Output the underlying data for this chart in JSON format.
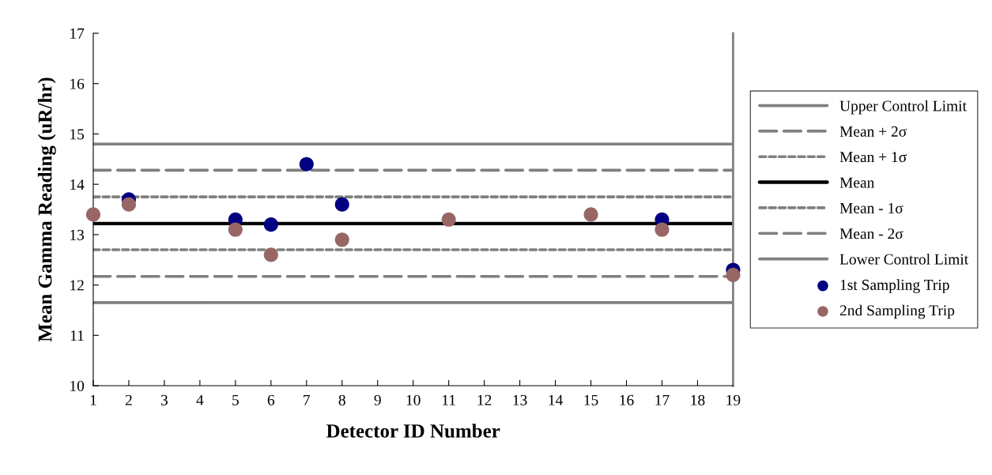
{
  "chart_data": {
    "type": "line",
    "xlabel": "Detector ID Number",
    "ylabel": "Mean Gamma Reading (uR/hr)",
    "xlim": [
      1,
      19
    ],
    "xticks": [
      1,
      2,
      3,
      4,
      5,
      6,
      7,
      8,
      9,
      10,
      11,
      12,
      13,
      14,
      15,
      16,
      17,
      18,
      19
    ],
    "ylim": [
      10,
      17
    ],
    "yticks": [
      10,
      11,
      12,
      13,
      14,
      15,
      16,
      17
    ],
    "grid": false,
    "legend": "right",
    "series": [
      {
        "name": "Upper Control Limit",
        "line_style": "solid",
        "color": "#808080",
        "x": [
          1,
          19
        ],
        "values": [
          14.8,
          14.8
        ]
      },
      {
        "name": "Mean + 2σ",
        "line_style": "dashed",
        "color": "#808080",
        "x": [
          1,
          19
        ],
        "values": [
          14.28,
          14.28
        ]
      },
      {
        "name": "Mean + 1σ",
        "line_style": "dotted",
        "color": "#808080",
        "x": [
          1,
          19
        ],
        "values": [
          13.75,
          13.75
        ]
      },
      {
        "name": "Mean",
        "line_style": "solid",
        "color": "#000000",
        "x": [
          1,
          19
        ],
        "values": [
          13.22,
          13.22
        ]
      },
      {
        "name": "Mean - 1σ",
        "line_style": "dotted",
        "color": "#808080",
        "x": [
          1,
          19
        ],
        "values": [
          12.7,
          12.7
        ]
      },
      {
        "name": "Mean - 2σ",
        "line_style": "dashed",
        "color": "#808080",
        "x": [
          1,
          19
        ],
        "values": [
          12.17,
          12.17
        ]
      },
      {
        "name": "Lower Control Limit",
        "line_style": "solid",
        "color": "#808080",
        "x": [
          1,
          19
        ],
        "values": [
          11.65,
          11.65
        ]
      },
      {
        "name": "1st Sampling Trip",
        "type": "scatter",
        "marker": "circle",
        "color": "#000080",
        "x": [
          2,
          5,
          6,
          7,
          8,
          17,
          19
        ],
        "values": [
          13.7,
          13.3,
          13.2,
          14.4,
          13.6,
          13.3,
          12.3
        ]
      },
      {
        "name": "2nd Sampling Trip",
        "type": "scatter",
        "marker": "circle",
        "color": "#996666",
        "x": [
          1,
          2,
          5,
          6,
          8,
          11,
          15,
          17,
          19
        ],
        "values": [
          13.4,
          13.6,
          13.1,
          12.6,
          12.9,
          13.3,
          13.4,
          13.1,
          12.2
        ]
      }
    ]
  }
}
